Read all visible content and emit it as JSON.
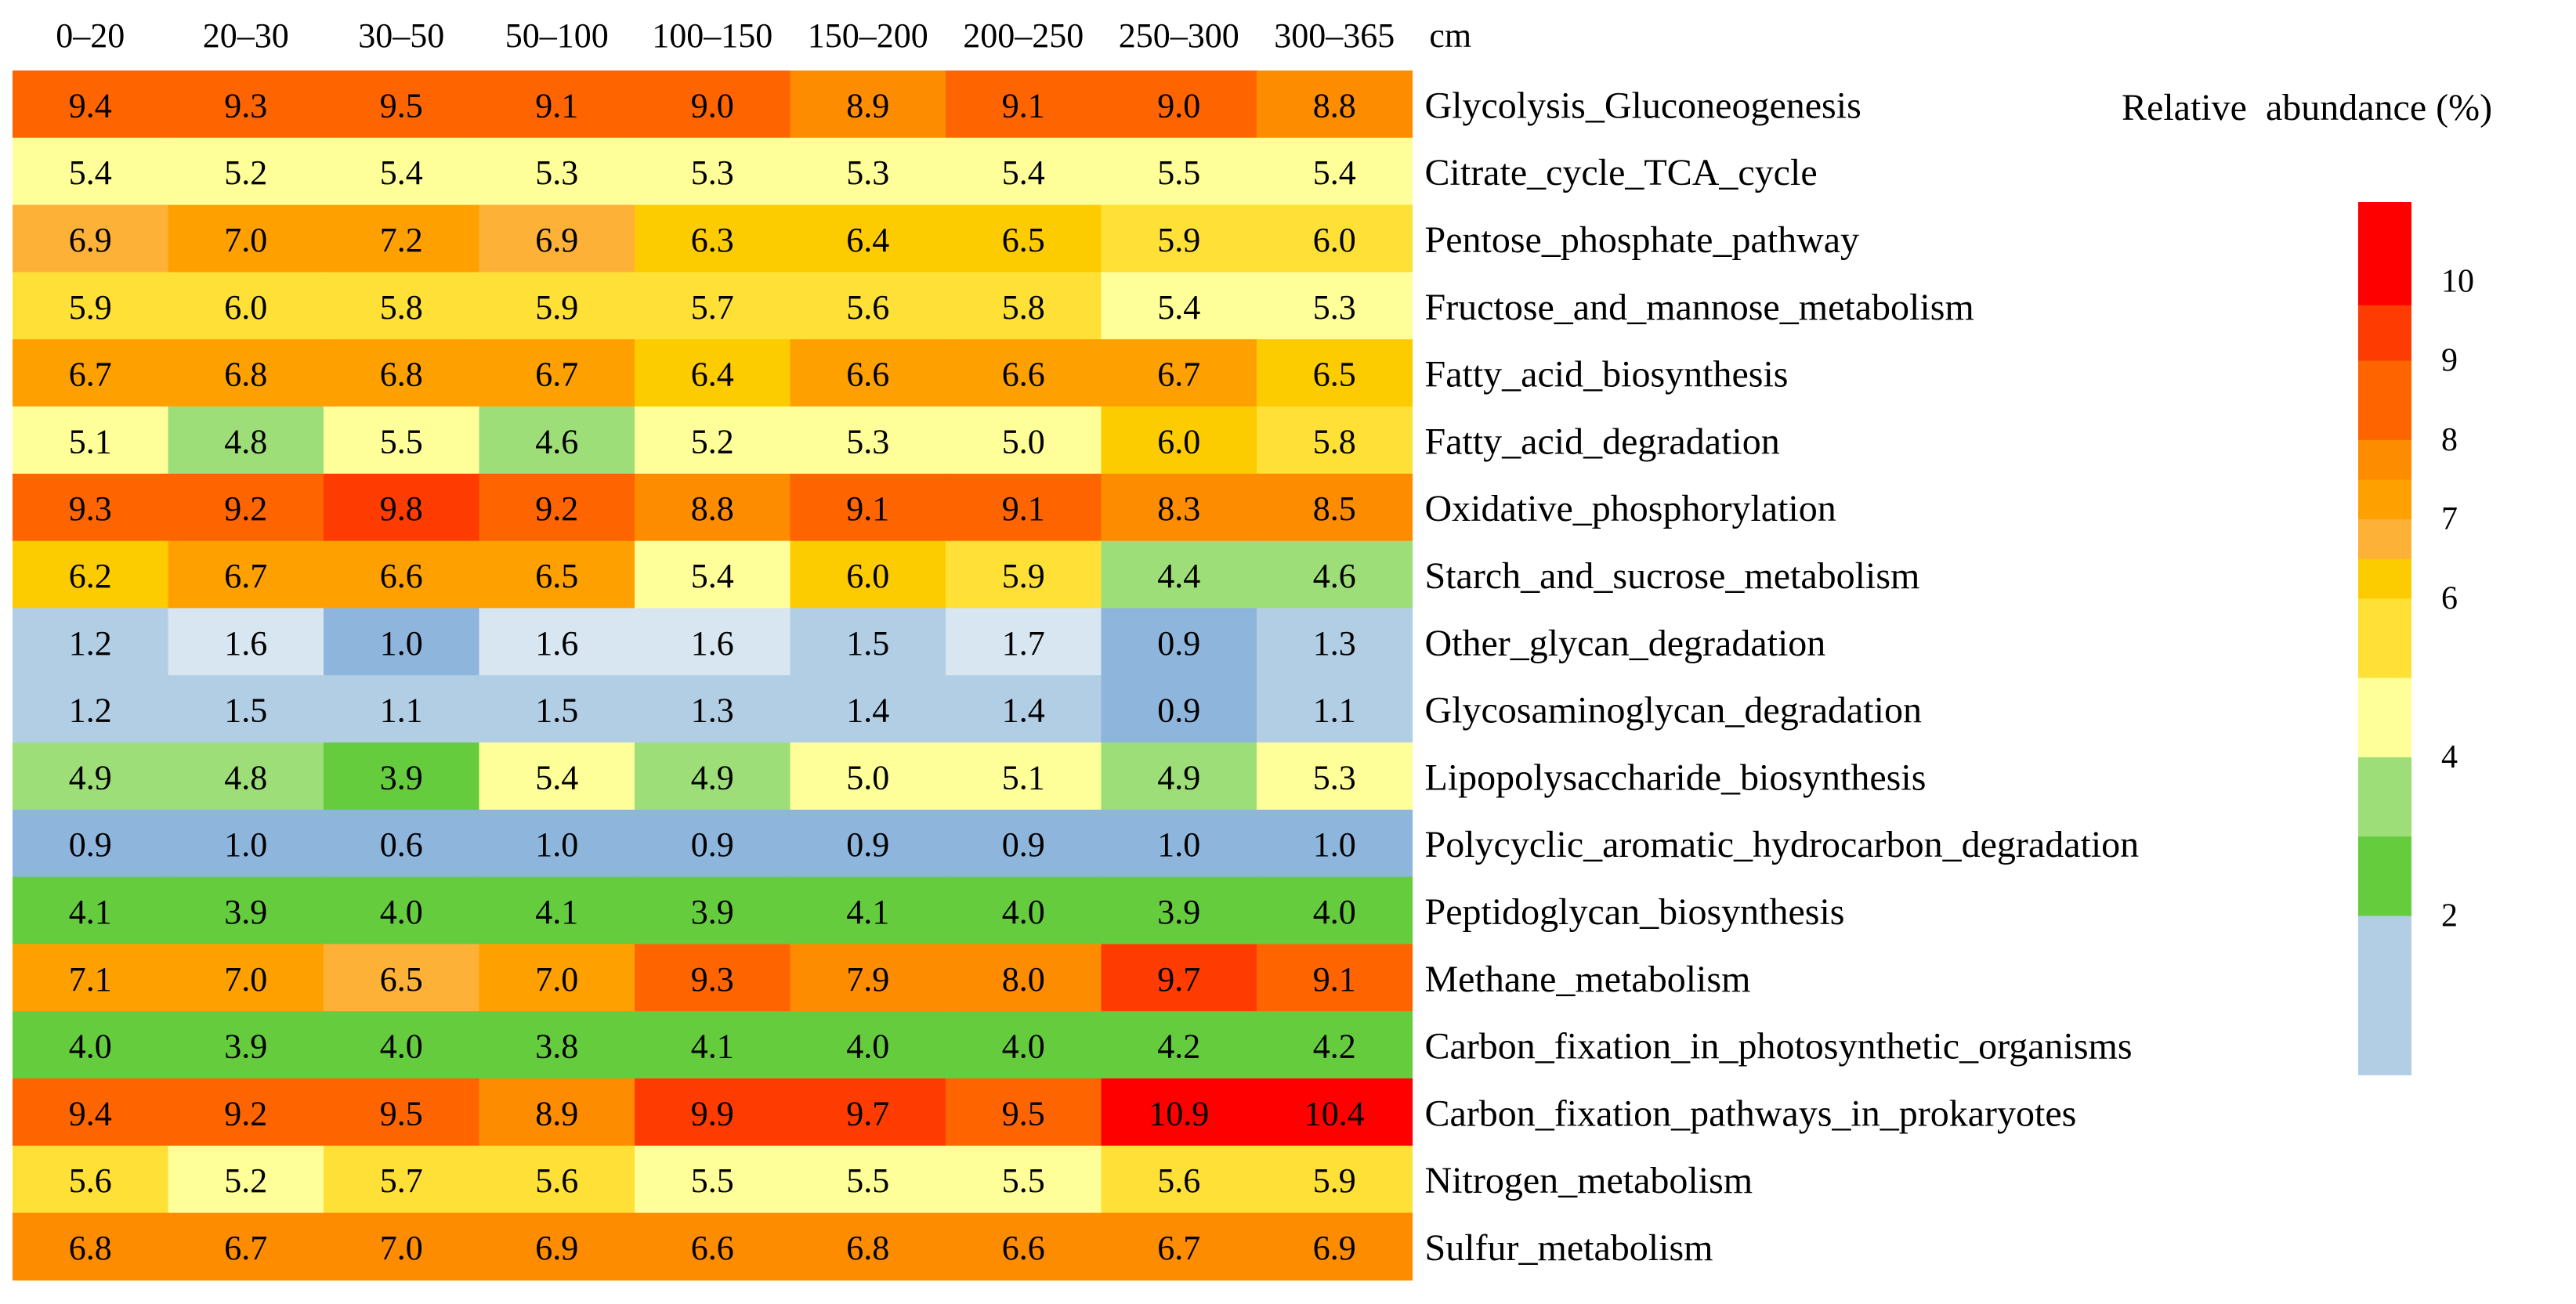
{
  "chart_data": {
    "type": "heatmap",
    "title": "",
    "x_unit": "cm",
    "columns": [
      "0–20",
      "20–30",
      "30–50",
      "50–100",
      "100–150",
      "150–200",
      "200–250",
      "250–300",
      "300–365"
    ],
    "rows": [
      {
        "label": "Glycolysis_Gluconeogenesis",
        "values": [
          "9.4",
          "9.3",
          "9.5",
          "9.1",
          "9.0",
          "8.9",
          "9.1",
          "9.0",
          "8.8"
        ]
      },
      {
        "label": "Citrate_cycle_TCA_cycle",
        "values": [
          "5.4",
          "5.2",
          "5.4",
          "5.3",
          "5.3",
          "5.3",
          "5.4",
          "5.5",
          "5.4"
        ]
      },
      {
        "label": "Pentose_phosphate_pathway",
        "values": [
          "6.9",
          "7.0",
          "7.2",
          "6.9",
          "6.3",
          "6.4",
          "6.5",
          "5.9",
          "6.0"
        ]
      },
      {
        "label": "Fructose_and_mannose_metabolism",
        "values": [
          "5.9",
          "6.0",
          "5.8",
          "5.9",
          "5.7",
          "5.6",
          "5.8",
          "5.4",
          "5.3"
        ]
      },
      {
        "label": "Fatty_acid_biosynthesis",
        "values": [
          "6.7",
          "6.8",
          "6.8",
          "6.7",
          "6.4",
          "6.6",
          "6.6",
          "6.7",
          "6.5"
        ]
      },
      {
        "label": "Fatty_acid_degradation",
        "values": [
          "5.1",
          "4.8",
          "5.5",
          "4.6",
          "5.2",
          "5.3",
          "5.0",
          "6.0",
          "5.8"
        ]
      },
      {
        "label": "Oxidative_phosphorylation",
        "values": [
          "9.3",
          "9.2",
          "9.8",
          "9.2",
          "8.8",
          "9.1",
          "9.1",
          "8.3",
          "8.5"
        ]
      },
      {
        "label": "Starch_and_sucrose_metabolism",
        "values": [
          "6.2",
          "6.7",
          "6.6",
          "6.5",
          "5.4",
          "6.0",
          "5.9",
          "4.4",
          "4.6"
        ]
      },
      {
        "label": "Other_glycan_degradation",
        "values": [
          "1.2",
          "1.6",
          "1.0",
          "1.6",
          "1.6",
          "1.5",
          "1.7",
          "0.9",
          "1.3"
        ]
      },
      {
        "label": "Glycosaminoglycan_degradation",
        "values": [
          "1.2",
          "1.5",
          "1.1",
          "1.5",
          "1.3",
          "1.4",
          "1.4",
          "0.9",
          "1.1"
        ]
      },
      {
        "label": "Lipopolysaccharide_biosynthesis",
        "values": [
          "4.9",
          "4.8",
          "3.9",
          "5.4",
          "4.9",
          "5.0",
          "5.1",
          "4.9",
          "5.3"
        ]
      },
      {
        "label": "Polycyclic_aromatic_hydrocarbon_degradation",
        "values": [
          "0.9",
          "1.0",
          "0.6",
          "1.0",
          "0.9",
          "0.9",
          "0.9",
          "1.0",
          "1.0"
        ]
      },
      {
        "label": "Peptidoglycan_biosynthesis",
        "values": [
          "4.1",
          "3.9",
          "4.0",
          "4.1",
          "3.9",
          "4.1",
          "4.0",
          "3.9",
          "4.0"
        ]
      },
      {
        "label": "Methane_metabolism",
        "values": [
          "7.1",
          "7.0",
          "6.5",
          "7.0",
          "9.3",
          "7.9",
          "8.0",
          "9.7",
          "9.1"
        ]
      },
      {
        "label": "Carbon_fixation_in_photosynthetic_organisms",
        "values": [
          "4.0",
          "3.9",
          "4.0",
          "3.8",
          "4.1",
          "4.0",
          "4.0",
          "4.2",
          "4.2"
        ]
      },
      {
        "label": "Carbon_fixation_pathways_in_prokaryotes",
        "values": [
          "9.4",
          "9.2",
          "9.5",
          "8.9",
          "9.9",
          "9.7",
          "9.5",
          "10.9",
          "10.4"
        ]
      },
      {
        "label": "Nitrogen_metabolism",
        "values": [
          "5.6",
          "5.2",
          "5.7",
          "5.6",
          "5.5",
          "5.5",
          "5.5",
          "5.6",
          "5.9"
        ]
      },
      {
        "label": "Sulfur_metabolism",
        "values": [
          "6.8",
          "6.7",
          "7.0",
          "6.9",
          "6.6",
          "6.8",
          "6.6",
          "6.7",
          "6.9"
        ]
      }
    ],
    "legend": {
      "title": "Relative  abundance (%)",
      "ticks": [
        "10",
        "9",
        "8",
        "7",
        "6",
        "4",
        "2"
      ],
      "tick_values": [
        10,
        9,
        8,
        7,
        6,
        4,
        2
      ],
      "range": [
        0,
        11
      ],
      "bins": [
        {
          "max": 11,
          "color": "#fe0000"
        },
        {
          "max": 9.7,
          "color": "#fe3b00"
        },
        {
          "max": 9.0,
          "color": "#fe6400"
        },
        {
          "max": 8.0,
          "color": "#fe8c00"
        },
        {
          "max": 7.5,
          "color": "#fea100"
        },
        {
          "max": 7.0,
          "color": "#fdb137"
        },
        {
          "max": 6.5,
          "color": "#fdcc00"
        },
        {
          "max": 6.0,
          "color": "#fee036"
        },
        {
          "max": 5.0,
          "color": "#ffff99"
        },
        {
          "max": 4.0,
          "color": "#9ede78"
        },
        {
          "max": 3.0,
          "color": "#65cc3e"
        },
        {
          "max": 2.0,
          "color": "#b2cee5"
        },
        {
          "max": 0,
          "color": "#8eb5dc"
        }
      ]
    },
    "cell_colors": [
      [
        "#fe6400",
        "#fe6400",
        "#fe6400",
        "#fe6400",
        "#fe6400",
        "#fe8c00",
        "#fe6400",
        "#fe6400",
        "#fe8c00"
      ],
      [
        "#ffff99",
        "#ffff99",
        "#ffff99",
        "#ffff99",
        "#ffff99",
        "#ffff99",
        "#ffff99",
        "#ffff99",
        "#ffff99"
      ],
      [
        "#fdb137",
        "#fea100",
        "#fea100",
        "#fdb137",
        "#fdcc00",
        "#fdcc00",
        "#fdcc00",
        "#fee036",
        "#fee036"
      ],
      [
        "#fee036",
        "#fee036",
        "#fee036",
        "#fee036",
        "#fee036",
        "#fee036",
        "#fee036",
        "#ffff99",
        "#ffff99"
      ],
      [
        "#fea100",
        "#fea100",
        "#fea100",
        "#fea100",
        "#fdcc00",
        "#fea100",
        "#fea100",
        "#fea100",
        "#fdcc00"
      ],
      [
        "#ffff99",
        "#9ede78",
        "#ffff99",
        "#9ede78",
        "#ffff99",
        "#ffff99",
        "#ffff99",
        "#fdcc00",
        "#fee036"
      ],
      [
        "#fe6400",
        "#fe6400",
        "#fe3b00",
        "#fe6400",
        "#fe8c00",
        "#fe6400",
        "#fe6400",
        "#fe8c00",
        "#fe8c00"
      ],
      [
        "#fdcc00",
        "#fea100",
        "#fea100",
        "#fea100",
        "#ffff99",
        "#fdcc00",
        "#fee036",
        "#9ede78",
        "#9ede78"
      ],
      [
        "#b2cee5",
        "#d7e6f1",
        "#8eb5dc",
        "#d7e6f1",
        "#d7e6f1",
        "#b2cee5",
        "#d7e6f1",
        "#8eb5dc",
        "#b2cee5"
      ],
      [
        "#b2cee5",
        "#b2cee5",
        "#b2cee5",
        "#b2cee5",
        "#b2cee5",
        "#b2cee5",
        "#b2cee5",
        "#8eb5dc",
        "#b2cee5"
      ],
      [
        "#9ede78",
        "#9ede78",
        "#65cc3e",
        "#ffff99",
        "#9ede78",
        "#ffff99",
        "#ffff99",
        "#9ede78",
        "#ffff99"
      ],
      [
        "#8eb5dc",
        "#8eb5dc",
        "#8eb5dc",
        "#8eb5dc",
        "#8eb5dc",
        "#8eb5dc",
        "#8eb5dc",
        "#8eb5dc",
        "#8eb5dc"
      ],
      [
        "#65cc3e",
        "#65cc3e",
        "#65cc3e",
        "#65cc3e",
        "#65cc3e",
        "#65cc3e",
        "#65cc3e",
        "#65cc3e",
        "#65cc3e"
      ],
      [
        "#fea100",
        "#fea100",
        "#fdb137",
        "#fea100",
        "#fe6400",
        "#fe8c00",
        "#fe8c00",
        "#fe3b00",
        "#fe6400"
      ],
      [
        "#65cc3e",
        "#65cc3e",
        "#65cc3e",
        "#65cc3e",
        "#65cc3e",
        "#65cc3e",
        "#65cc3e",
        "#65cc3e",
        "#65cc3e"
      ],
      [
        "#fe6400",
        "#fe6400",
        "#fe6400",
        "#fe8c00",
        "#fe3b00",
        "#fe3b00",
        "#fe6400",
        "#fe0000",
        "#fe0000"
      ],
      [
        "#fee036",
        "#ffff99",
        "#fee036",
        "#fee036",
        "#ffff99",
        "#ffff99",
        "#ffff99",
        "#fee036",
        "#fee036"
      ],
      [
        "#fe8c00",
        "#fe8c00",
        "#fe8c00",
        "#fe8c00",
        "#fe8c00",
        "#fe8c00",
        "#fe8c00",
        "#fe8c00",
        "#fe8c00"
      ]
    ]
  }
}
